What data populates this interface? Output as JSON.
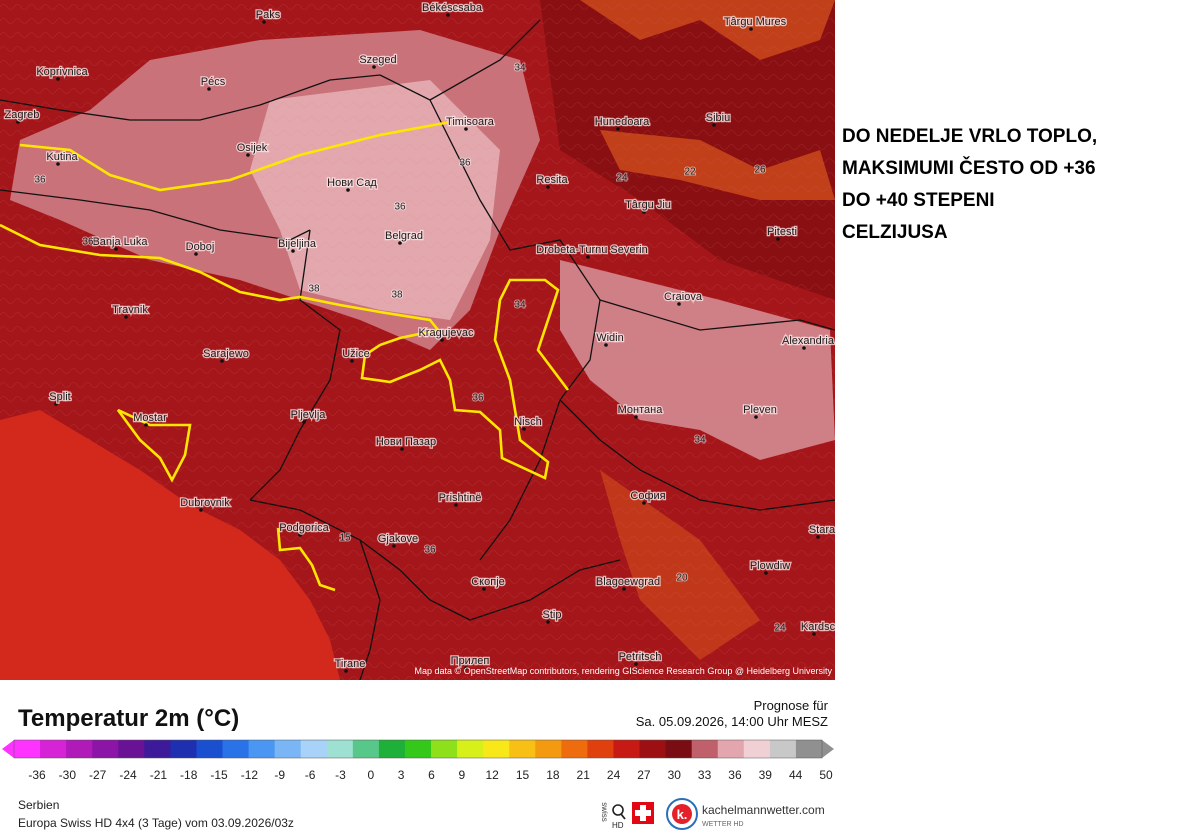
{
  "annotation": {
    "lines": [
      "DO NEDELJE VRLO TOPLO,",
      "MAKSIMUMI ČESTO OD +36",
      "DO +40 STEPENI",
      "CELZIJUSA"
    ]
  },
  "map": {
    "cities": [
      "Békéscsaba",
      "Paks",
      "Koprivnica",
      "Pécs",
      "Szeged",
      "Târgu Mures",
      "Hunedoara",
      "Sibiu",
      "Zagreb",
      "Osijek",
      "Timisoara",
      "Kutina",
      "Нови Сад",
      "Resita",
      "Târgu Jiu",
      "Pitesti",
      "Banja Luka",
      "Doboj",
      "Bijeljina",
      "Belgrad",
      "Drobeta-Turnu Severin",
      "Craiova",
      "Travnik",
      "Kragujevac",
      "Alexandria",
      "Sarajewo",
      "Užice",
      "Widin",
      "Split",
      "Mostar",
      "Pljevlja",
      "Монтана",
      "Pleven",
      "Nisch",
      "Нови Пазар",
      "София",
      "Dubrovnik",
      "Prishtinë",
      "Podgorica",
      "Gjakove",
      "Скопје",
      "Blagoewgrad",
      "Plowdiw",
      "Stip",
      "Petritsch",
      "Tirane",
      "Прилеп",
      "Kardsc",
      "Stara"
    ],
    "contour_labels": [
      "34",
      "36",
      "36",
      "38",
      "38",
      "36",
      "34",
      "24",
      "22",
      "26",
      "20",
      "24",
      "36",
      "15",
      "36",
      "34",
      "36"
    ],
    "attribution": "Map data © OpenStreetMap contributors, rendering GIScience Research Group @ Heidelberg University"
  },
  "legend": {
    "title": "Temperatur 2m (°C)",
    "forecast_label": "Prognose für",
    "forecast_time": "Sa. 05.09.2026, 14:00 Uhr MESZ",
    "colorbar": {
      "ticks": [
        "-36",
        "-30",
        "-27",
        "-24",
        "-21",
        "-18",
        "-15",
        "-12",
        "-9",
        "-6",
        "-3",
        "0",
        "3",
        "6",
        "9",
        "12",
        "15",
        "18",
        "21",
        "24",
        "27",
        "30",
        "33",
        "36",
        "39",
        "44",
        "50"
      ],
      "colors": [
        "#ff33ff",
        "#d623d6",
        "#b01ab8",
        "#8c14a6",
        "#6a1296",
        "#3c1a9a",
        "#1e2fb0",
        "#1a4fd0",
        "#2a72e8",
        "#4a96f2",
        "#7ab6f6",
        "#a8d2f8",
        "#9ee0d2",
        "#58c88a",
        "#1fb03a",
        "#34c81a",
        "#8ee01a",
        "#d8f01a",
        "#f8e81a",
        "#f8c014",
        "#f49a10",
        "#ee6c0e",
        "#e0400e",
        "#c81a14",
        "#9c1014",
        "#7a0c14",
        "#c0606a",
        "#e4a6ae",
        "#f0d0d4",
        "#c8c8c8",
        "#909090"
      ]
    },
    "region": "Serbien",
    "model_run": "Europa Swiss HD 4x4 (3 Tage) vom 03.09.2026/03z"
  },
  "branding": {
    "swiss": "swiss",
    "hd": "HD",
    "site": "kachelmannwetter.com",
    "tagline": "WETTER HD"
  }
}
